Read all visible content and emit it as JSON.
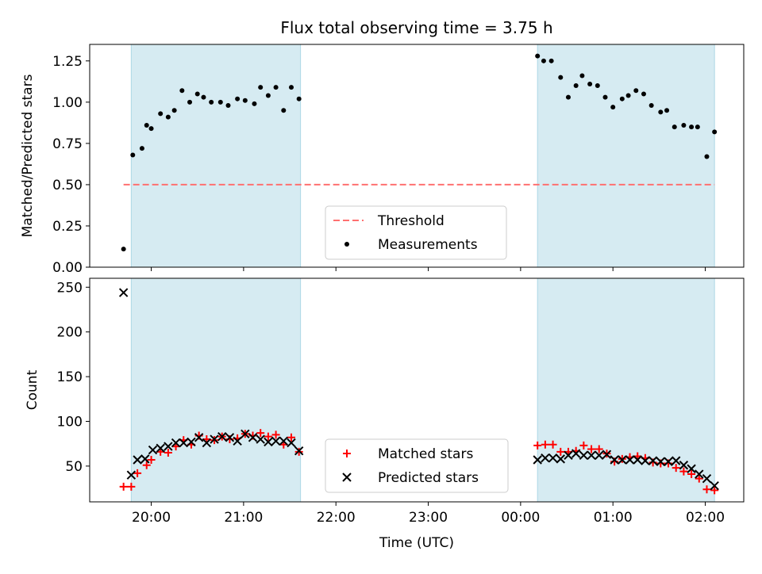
{
  "chart_data": {
    "type": "scatter",
    "title": "Flux total observing time = 3.75 h",
    "xlabel": "Time (UTC)",
    "x_tick_labels": [
      "20:00",
      "21:00",
      "22:00",
      "23:00",
      "00:00",
      "01:00",
      "02:00"
    ],
    "shaded_intervals": [
      [
        "19:47",
        "21:37"
      ],
      [
        "00:11",
        "02:06"
      ]
    ],
    "colors": {
      "shade": "#add8e6",
      "threshold": "#ff7070",
      "matched": "#ff0000",
      "predicted": "#000000",
      "measurements": "#000000"
    },
    "panels": [
      {
        "name": "ratio",
        "ylabel": "Matched/Predicted stars",
        "ylim": [
          0,
          1.35
        ],
        "y_ticks": [
          "0.00",
          "0.25",
          "0.50",
          "0.75",
          "1.00",
          "1.25"
        ],
        "legend": [
          "Threshold",
          "Measurements"
        ],
        "legend_position": "lower center",
        "threshold": {
          "name": "Threshold",
          "y": 0.5,
          "x_range": [
            "19:42",
            "02:06"
          ]
        },
        "series": [
          {
            "name": "Measurements",
            "marker": "dot",
            "points": [
              [
                "19:42",
                0.11
              ],
              [
                "19:48",
                0.68
              ],
              [
                "19:54",
                0.72
              ],
              [
                "19:57",
                0.86
              ],
              [
                "20:00",
                0.84
              ],
              [
                "20:06",
                0.93
              ],
              [
                "20:11",
                0.91
              ],
              [
                "20:15",
                0.95
              ],
              [
                "20:20",
                1.07
              ],
              [
                "20:25",
                1.0
              ],
              [
                "20:30",
                1.05
              ],
              [
                "20:34",
                1.03
              ],
              [
                "20:39",
                1.0
              ],
              [
                "20:45",
                1.0
              ],
              [
                "20:50",
                0.98
              ],
              [
                "20:56",
                1.02
              ],
              [
                "21:01",
                1.01
              ],
              [
                "21:07",
                0.99
              ],
              [
                "21:11",
                1.09
              ],
              [
                "21:16",
                1.04
              ],
              [
                "21:21",
                1.09
              ],
              [
                "21:26",
                0.95
              ],
              [
                "21:31",
                1.09
              ],
              [
                "21:36",
                1.02
              ],
              [
                "00:11",
                1.28
              ],
              [
                "00:15",
                1.25
              ],
              [
                "00:20",
                1.25
              ],
              [
                "00:26",
                1.15
              ],
              [
                "00:31",
                1.03
              ],
              [
                "00:36",
                1.1
              ],
              [
                "00:40",
                1.16
              ],
              [
                "00:45",
                1.11
              ],
              [
                "00:50",
                1.1
              ],
              [
                "00:55",
                1.03
              ],
              [
                "01:00",
                0.97
              ],
              [
                "01:06",
                1.02
              ],
              [
                "01:10",
                1.04
              ],
              [
                "01:15",
                1.07
              ],
              [
                "01:20",
                1.05
              ],
              [
                "01:25",
                0.98
              ],
              [
                "01:31",
                0.94
              ],
              [
                "01:35",
                0.95
              ],
              [
                "01:40",
                0.85
              ],
              [
                "01:46",
                0.86
              ],
              [
                "01:51",
                0.85
              ],
              [
                "01:55",
                0.85
              ],
              [
                "02:01",
                0.67
              ],
              [
                "02:06",
                0.82
              ]
            ]
          }
        ]
      },
      {
        "name": "count",
        "ylabel": "Count",
        "ylim": [
          10,
          260
        ],
        "y_ticks": [
          "50",
          "100",
          "150",
          "200",
          "250"
        ],
        "legend": [
          "Matched stars",
          "Predicted stars"
        ],
        "legend_position": "lower center",
        "series": [
          {
            "name": "Matched stars",
            "marker": "plus",
            "points": [
              [
                "19:42",
                27
              ],
              [
                "19:47",
                27
              ],
              [
                "19:51",
                42
              ],
              [
                "19:57",
                51
              ],
              [
                "20:00",
                57
              ],
              [
                "20:06",
                66
              ],
              [
                "20:11",
                65
              ],
              [
                "20:16",
                72
              ],
              [
                "20:21",
                79
              ],
              [
                "20:26",
                74
              ],
              [
                "20:31",
                84
              ],
              [
                "20:36",
                80
              ],
              [
                "20:41",
                79
              ],
              [
                "20:46",
                83
              ],
              [
                "20:51",
                80
              ],
              [
                "20:56",
                81
              ],
              [
                "21:01",
                86
              ],
              [
                "21:06",
                84
              ],
              [
                "21:11",
                87
              ],
              [
                "21:16",
                83
              ],
              [
                "21:21",
                85
              ],
              [
                "21:26",
                74
              ],
              [
                "21:31",
                82
              ],
              [
                "21:36",
                66
              ],
              [
                "00:11",
                73
              ],
              [
                "00:16",
                74
              ],
              [
                "00:21",
                74
              ],
              [
                "00:26",
                66
              ],
              [
                "00:31",
                66
              ],
              [
                "00:36",
                67
              ],
              [
                "00:41",
                73
              ],
              [
                "00:46",
                69
              ],
              [
                "00:51",
                69
              ],
              [
                "00:56",
                64
              ],
              [
                "01:01",
                55
              ],
              [
                "01:06",
                58
              ],
              [
                "01:11",
                60
              ],
              [
                "01:16",
                61
              ],
              [
                "01:21",
                59
              ],
              [
                "01:26",
                54
              ],
              [
                "01:31",
                53
              ],
              [
                "01:36",
                53
              ],
              [
                "01:41",
                48
              ],
              [
                "01:46",
                44
              ],
              [
                "01:51",
                41
              ],
              [
                "01:56",
                36
              ],
              [
                "02:01",
                24
              ],
              [
                "02:06",
                23
              ]
            ]
          },
          {
            "name": "Predicted stars",
            "marker": "x",
            "points": [
              [
                "19:42",
                244
              ],
              [
                "19:47",
                40
              ],
              [
                "19:51",
                57
              ],
              [
                "19:56",
                58
              ],
              [
                "20:01",
                68
              ],
              [
                "20:06",
                70
              ],
              [
                "20:11",
                72
              ],
              [
                "20:16",
                76
              ],
              [
                "20:21",
                76
              ],
              [
                "20:26",
                77
              ],
              [
                "20:31",
                82
              ],
              [
                "20:36",
                76
              ],
              [
                "20:41",
                80
              ],
              [
                "20:46",
                83
              ],
              [
                "20:51",
                82
              ],
              [
                "20:56",
                78
              ],
              [
                "21:01",
                86
              ],
              [
                "21:06",
                82
              ],
              [
                "21:11",
                80
              ],
              [
                "21:16",
                77
              ],
              [
                "21:21",
                78
              ],
              [
                "21:26",
                78
              ],
              [
                "21:31",
                76
              ],
              [
                "21:36",
                67
              ],
              [
                "00:11",
                57
              ],
              [
                "00:16",
                59
              ],
              [
                "00:21",
                59
              ],
              [
                "00:26",
                58
              ],
              [
                "00:31",
                62
              ],
              [
                "00:36",
                64
              ],
              [
                "00:41",
                62
              ],
              [
                "00:46",
                62
              ],
              [
                "00:51",
                62
              ],
              [
                "00:56",
                63
              ],
              [
                "01:01",
                57
              ],
              [
                "01:06",
                57
              ],
              [
                "01:11",
                57
              ],
              [
                "01:16",
                57
              ],
              [
                "01:21",
                56
              ],
              [
                "01:26",
                56
              ],
              [
                "01:31",
                55
              ],
              [
                "01:36",
                55
              ],
              [
                "01:41",
                56
              ],
              [
                "01:46",
                51
              ],
              [
                "01:51",
                47
              ],
              [
                "01:56",
                41
              ],
              [
                "02:01",
                36
              ],
              [
                "02:06",
                28
              ]
            ]
          }
        ]
      }
    ]
  }
}
